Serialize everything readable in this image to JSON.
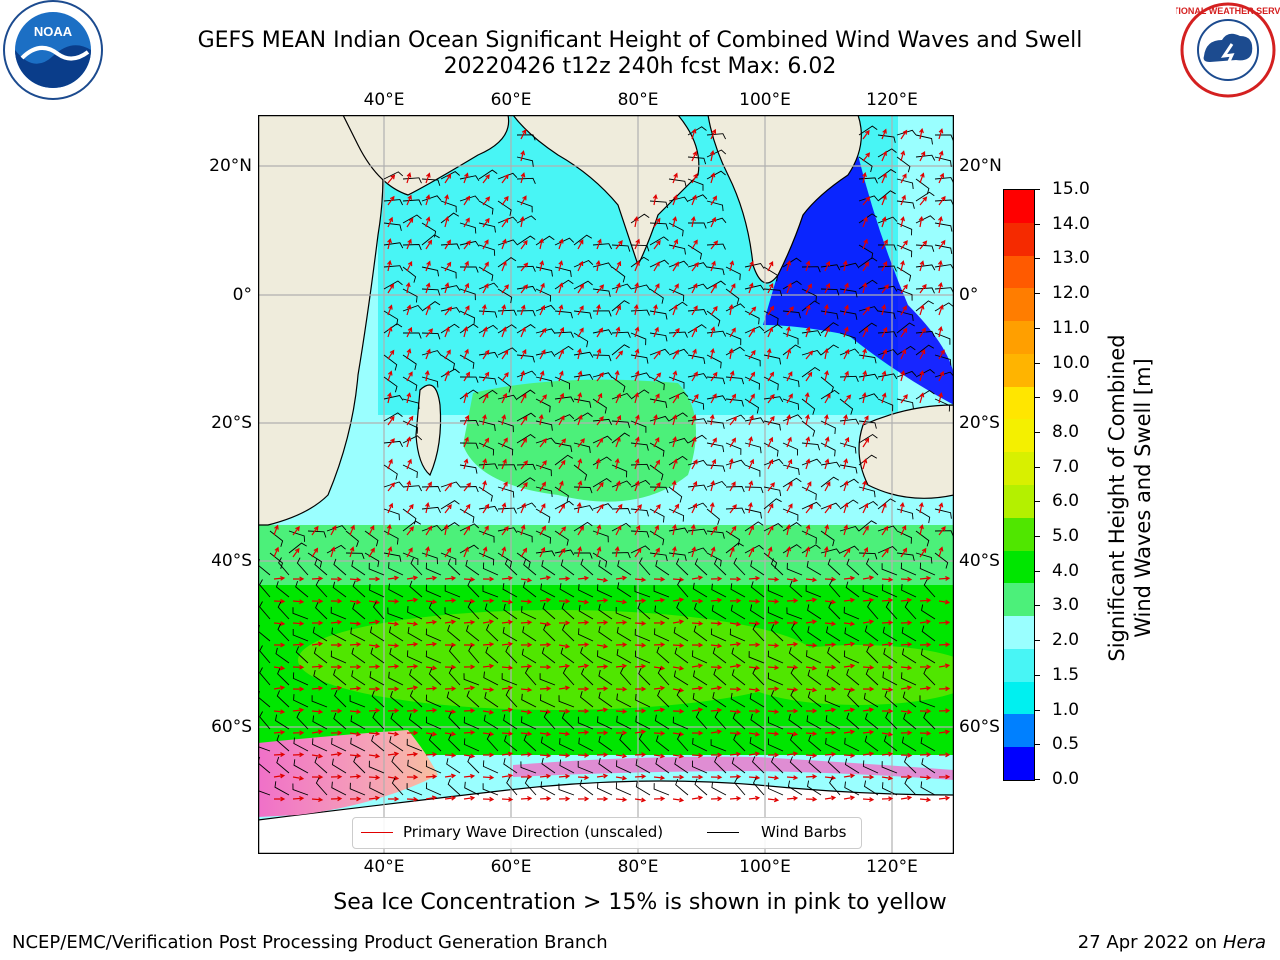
{
  "title": {
    "line1": "GEFS MEAN Indian Ocean Significant Height of Combined Wind Waves and Swell",
    "line2": "20220426 t12z 240h fcst   Max: 6.02"
  },
  "logos": {
    "noaa": {
      "text": "NOAA",
      "ring_text": "NATIONAL OCEANIC AND ATMOSPHERIC ADMINISTRATION · U.S. DEPARTMENT OF COMMERCE"
    },
    "nws": {
      "ring_text": "NATIONAL WEATHER SERVICE"
    }
  },
  "map": {
    "lon_ticks": [
      "40°E",
      "60°E",
      "80°E",
      "100°E",
      "120°E"
    ],
    "lat_ticks": [
      "20°N",
      "0°",
      "20°S",
      "40°S",
      "60°S"
    ],
    "colors": {
      "land": "#efecdc",
      "coast": "#000000",
      "grid": "#b0b0b0",
      "ice": "#f0a0d0",
      "antarctica": "#ffffff"
    }
  },
  "legend": {
    "wave": "Primary Wave Direction (unscaled)",
    "wind": "Wind Barbs",
    "wave_color": "#e00000",
    "wind_color": "#000000"
  },
  "colorbar": {
    "label_line1": "Significant Height of Combined",
    "label_line2": "Wind Waves and Swell [m]",
    "ticks": [
      "15.0",
      "14.0",
      "13.0",
      "12.0",
      "11.0",
      "10.0",
      "9.0",
      "8.0",
      "7.0",
      "6.0",
      "5.0",
      "4.0",
      "3.0",
      "2.0",
      "1.5",
      "1.0",
      "0.5",
      "0.0"
    ],
    "colors_top_to_bottom": [
      "#ff0000",
      "#f52a00",
      "#ff5a00",
      "#ff7d00",
      "#ff9f00",
      "#ffb400",
      "#ffe600",
      "#f4f000",
      "#d8f000",
      "#b4f000",
      "#50e600",
      "#00e600",
      "#4cf07a",
      "#9affff",
      "#48f5f5",
      "#00f0f0",
      "#0080ff",
      "#0000ff"
    ]
  },
  "caption": "Sea Ice Concentration > 15% is shown in pink to yellow",
  "footer": {
    "left": "NCEP/EMC/Verification Post Processing Product Generation Branch",
    "right_date": "27 Apr 2022 on ",
    "right_host": "Hera"
  }
}
